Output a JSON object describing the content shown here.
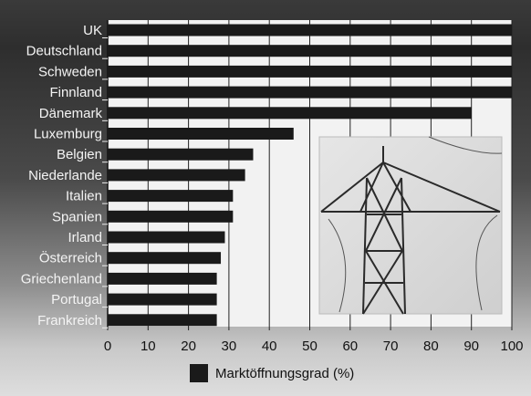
{
  "chart_data": {
    "type": "bar",
    "orientation": "horizontal",
    "title": "",
    "categories": [
      "UK",
      "Deutschland",
      "Schweden",
      "Finnland",
      "Dänemark",
      "Luxemburg",
      "Belgien",
      "Niederlande",
      "Italien",
      "Spanien",
      "Irland",
      "Österreich",
      "Griechenland",
      "Portugal",
      "Frankreich"
    ],
    "series": [
      {
        "name": "Marktöffnungsgrad (%)",
        "values": [
          100,
          100,
          100,
          100,
          90,
          46,
          36,
          34,
          31,
          31,
          29,
          28,
          27,
          27,
          27
        ]
      }
    ],
    "xlim": [
      0,
      100
    ],
    "xticks": [
      "0",
      "10",
      "20",
      "30",
      "40",
      "50",
      "60",
      "70",
      "80",
      "90",
      "100"
    ],
    "grid": "vertical",
    "legend": "bottom-center",
    "bar_color": "#1a1a1a",
    "colors": {
      "background_top": "#333333",
      "background_bottom": "#dcdcdc"
    }
  },
  "legend_label": "Marktöffnungsgrad (%)"
}
